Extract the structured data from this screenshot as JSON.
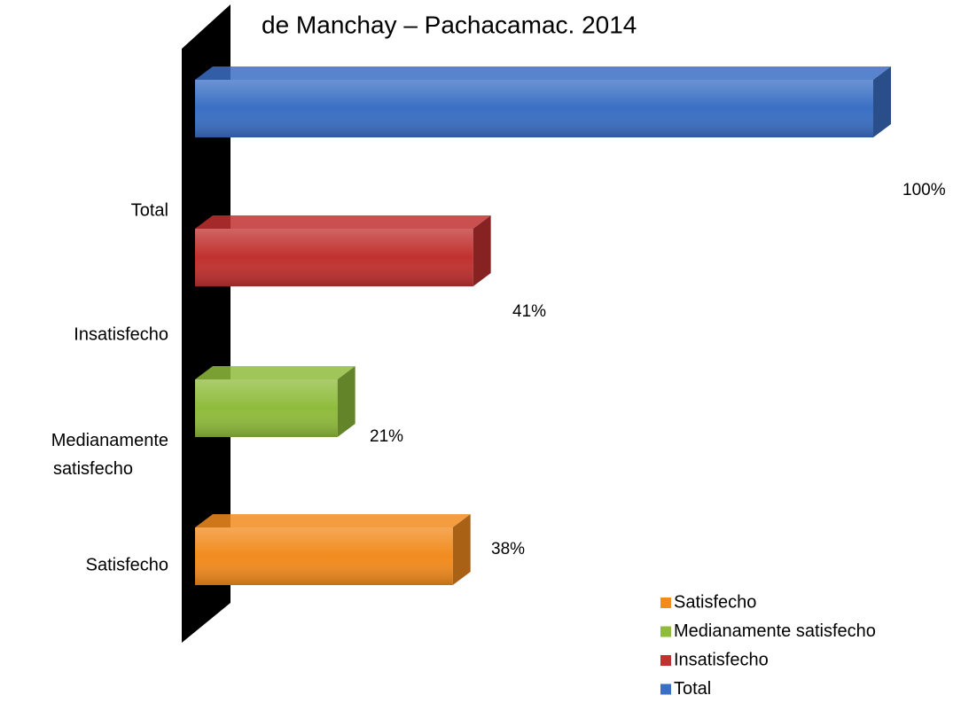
{
  "chart_data": {
    "type": "bar",
    "orientation": "horizontal",
    "title": "de Manchay – Pachacamac. 2014",
    "categories": [
      "Satisfecho",
      "Medianamente satisfecho",
      "Insatisfecho",
      "Total"
    ],
    "values": [
      38,
      21,
      41,
      100
    ],
    "value_labels": [
      "38%",
      "21%",
      "41%",
      "100%"
    ],
    "colors": [
      "#f28b1e",
      "#8fbc3c",
      "#c0312f",
      "#3a6fc4"
    ]
  }
}
